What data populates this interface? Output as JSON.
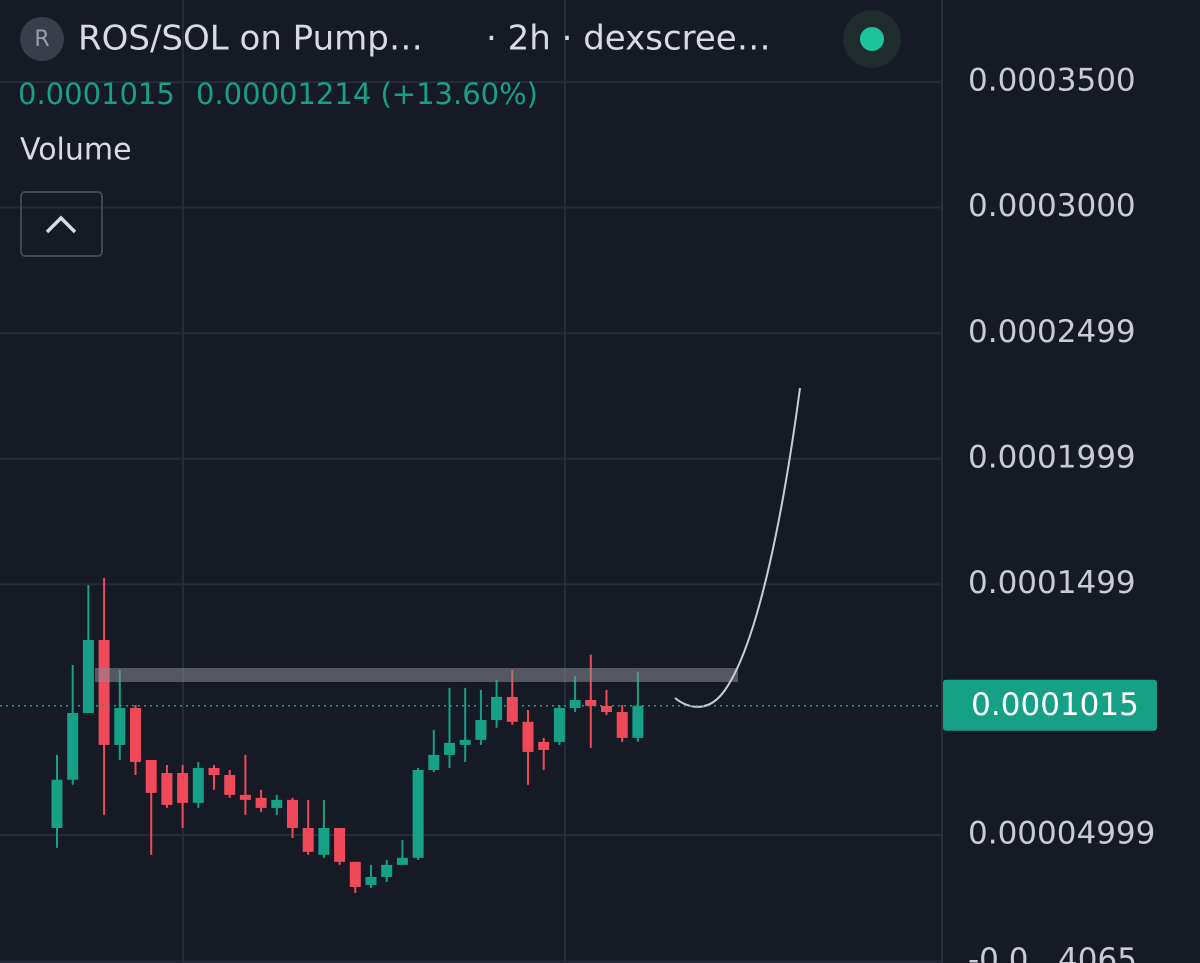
{
  "chart_data": {
    "type": "candlestick",
    "symbol_icon": "R",
    "title": "ROS/SOL on Pump…",
    "subtitle": "· 2h · dexscree…",
    "last_price": 0.0001015,
    "change_label": "0.00001214 (+13.60%)",
    "indicator": "Volume",
    "up_color": "#16a085",
    "down_color": "#f04a5a",
    "grid": true,
    "ylim": [
      -1e-06,
      0.0003827
    ],
    "yticks": [
      {
        "value": 0.00035,
        "label": "0.0003500"
      },
      {
        "value": 0.0003,
        "label": "0.0003000"
      },
      0.0002499,
      0.0001999,
      0.0001499,
      4.999e-05,
      {
        "value": -4.065e-07,
        "label": "-0.0...4065"
      }
    ],
    "open": [
      5.28e-05,
      7.2e-05,
      9.86e-05,
      0.0001277,
      8.59e-05,
      0.0001006,
      7.99e-05,
      7.47e-05,
      7.47e-05,
      6.28e-05,
      7.67e-05,
      7.39e-05,
      6.6e-05,
      6.48e-05,
      6.08e-05,
      6.4e-05,
      5.28e-05,
      4.21e-05,
      5.28e-05,
      3.93e-05,
      3.01e-05,
      3.33e-05,
      3.81e-05,
      4.09e-05,
      7.59e-05,
      8.19e-05,
      8.59e-05,
      8.79e-05,
      9.58e-05,
      0.000105,
      9.51e-05,
      8.71e-05,
      8.71e-05,
      0.0001006,
      0.0001038,
      0.0001014,
      9.9e-05,
      8.87e-05
    ],
    "high": [
      8.19e-05,
      0.0001178,
      0.0001496,
      0.0001524,
      0.0001158,
      0.0001018,
      7.99e-05,
      7.79e-05,
      7.79e-05,
      7.91e-05,
      7.79e-05,
      7.59e-05,
      8.19e-05,
      6.8e-05,
      6.6e-05,
      6.48e-05,
      6.4e-05,
      6.4e-05,
      5.28e-05,
      3.93e-05,
      3.81e-05,
      4.01e-05,
      4.8e-05,
      7.67e-05,
      9.19e-05,
      0.0001086,
      0.0001086,
      0.0001078,
      0.0001118,
      0.0001158,
      9.98e-05,
      8.87e-05,
      0.0001018,
      0.0001134,
      0.0001218,
      0.0001078,
      0.0001018,
      0.000115
    ],
    "low": [
      4.49e-05,
      7e-05,
      9.86e-05,
      5.8e-05,
      7.99e-05,
      7.39e-05,
      4.21e-05,
      6.08e-05,
      5.28e-05,
      6.08e-05,
      6.8e-05,
      6.48e-05,
      5.8e-05,
      5.92e-05,
      5.8e-05,
      4.88e-05,
      4.21e-05,
      4.09e-05,
      3.81e-05,
      2.69e-05,
      2.89e-05,
      3.13e-05,
      3.81e-05,
      4.01e-05,
      7.51e-05,
      7.67e-05,
      7.91e-05,
      8.59e-05,
      9.27e-05,
      9.39e-05,
      7e-05,
      7.59e-05,
      8.59e-05,
      9.9e-05,
      8.47e-05,
      9.78e-05,
      8.71e-05,
      8.71e-05
    ],
    "close": [
      7.2e-05,
      9.86e-05,
      0.0001277,
      8.59e-05,
      0.0001006,
      7.91e-05,
      6.68e-05,
      6.2e-05,
      6.28e-05,
      7.67e-05,
      7.39e-05,
      6.6e-05,
      6.4e-05,
      6.08e-05,
      6.4e-05,
      5.28e-05,
      4.33e-05,
      5.28e-05,
      3.93e-05,
      2.93e-05,
      3.33e-05,
      3.81e-05,
      4.09e-05,
      7.59e-05,
      8.19e-05,
      8.67e-05,
      8.79e-05,
      9.58e-05,
      0.000105,
      9.51e-05,
      8.31e-05,
      8.39e-05,
      0.0001006,
      0.0001038,
      0.0001014,
      9.9e-05,
      8.87e-05,
      0.0001015
    ]
  }
}
